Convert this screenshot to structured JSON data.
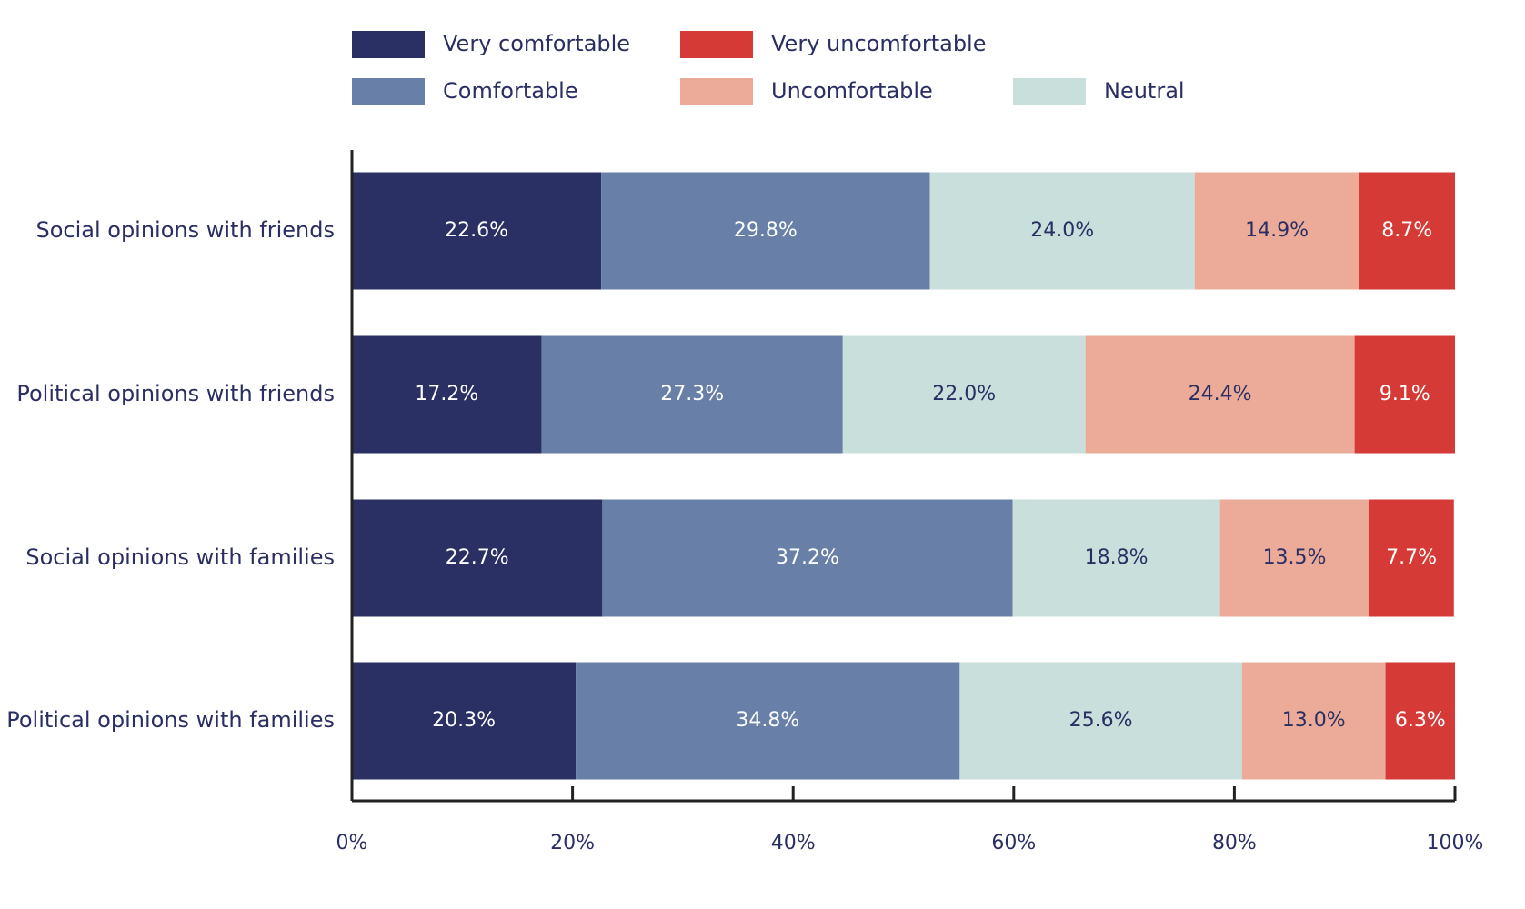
{
  "chart_data": {
    "type": "stacked-bar-horizontal",
    "categories": [
      "Social opinions with friends",
      "Political opinions with friends",
      "Social opinions with families",
      "Political opinions with families"
    ],
    "series": [
      {
        "name": "Very comfortable",
        "color": "#2a3063",
        "values": [
          22.6,
          17.2,
          22.7,
          20.3
        ],
        "value_labels": [
          "22.6%",
          "17.2%",
          "22.7%",
          "20.3%"
        ]
      },
      {
        "name": "Comfortable",
        "color": "#6880a7",
        "values": [
          29.8,
          27.3,
          37.2,
          34.8
        ],
        "value_labels": [
          "29.8%",
          "27.3%",
          "37.2%",
          "34.8%"
        ]
      },
      {
        "name": "Neutral",
        "color": "#c8dfdc",
        "values": [
          24.0,
          22.0,
          18.8,
          25.6
        ],
        "value_labels": [
          "24.0%",
          "22.0%",
          "18.8%",
          "25.6%"
        ]
      },
      {
        "name": "Uncomfortable",
        "color": "#ebab98",
        "values": [
          14.9,
          24.4,
          13.5,
          13.0
        ],
        "value_labels": [
          "14.9%",
          "24.4%",
          "13.5%",
          "13.0%"
        ]
      },
      {
        "name": "Very uncomfortable",
        "color": "#d63a37",
        "values": [
          8.7,
          9.1,
          7.7,
          6.3
        ],
        "value_labels": [
          "8.7%",
          "9.1%",
          "7.7%",
          "6.3%"
        ]
      }
    ],
    "xlim": [
      0,
      100
    ],
    "xticks": [
      {
        "value": 0,
        "label": "0%"
      },
      {
        "value": 20,
        "label": "20%"
      },
      {
        "value": 40,
        "label": "40%"
      },
      {
        "value": 60,
        "label": "60%"
      },
      {
        "value": 80,
        "label": "80%"
      },
      {
        "value": 100,
        "label": "100%"
      }
    ]
  }
}
